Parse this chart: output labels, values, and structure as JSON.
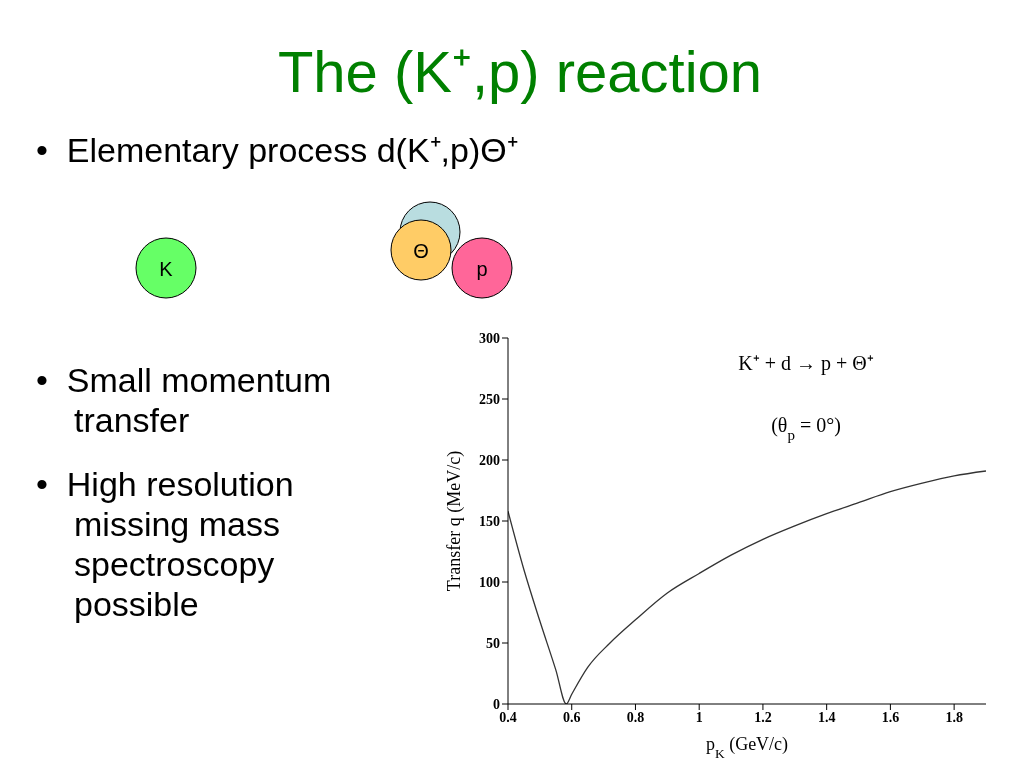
{
  "chart_data": {
    "type": "line",
    "title": "The (K⁺,p) reaction",
    "xlabel": "p$_{K}$ (GeV/c)",
    "ylabel": "Transfer q (MeV/c)",
    "annotations": [
      "•  Elementary process d(K⁺,p)Θ⁺",
      "•  Small momentum transfer",
      "•  High resolution missing mass spectroscopy possible",
      "K⁺ + d → p + Θ⁺",
      "(θ$_{p}$ = 0°)",
      "K",
      "Θ",
      "p"
    ],
    "x": [
      0.4,
      0.45,
      0.5,
      0.55,
      0.583,
      0.6,
      0.65,
      0.72,
      0.8,
      0.9,
      1.0,
      1.1,
      1.2,
      1.3,
      1.4,
      1.5,
      1.6,
      1.7,
      1.8,
      1.9
    ],
    "series": [
      {
        "color": "#333333",
        "values": [
          158,
          110,
          68,
          28,
          0,
          8,
          30,
          50,
          69,
          91,
          107,
          122,
          135,
          146,
          156,
          165,
          174,
          181,
          187,
          191
        ]
      }
    ],
    "xlim": [
      0.4,
      1.9
    ],
    "xticks": [
      0.4,
      0.6,
      0.8,
      {
        "value": 1,
        "label": "1"
      },
      1.2,
      1.4,
      1.6,
      1.8
    ],
    "ylim": [
      0,
      300
    ],
    "yticks": [
      0,
      50,
      100,
      150,
      200,
      250,
      300
    ],
    "marker": "none",
    "line_style": "solid"
  }
}
